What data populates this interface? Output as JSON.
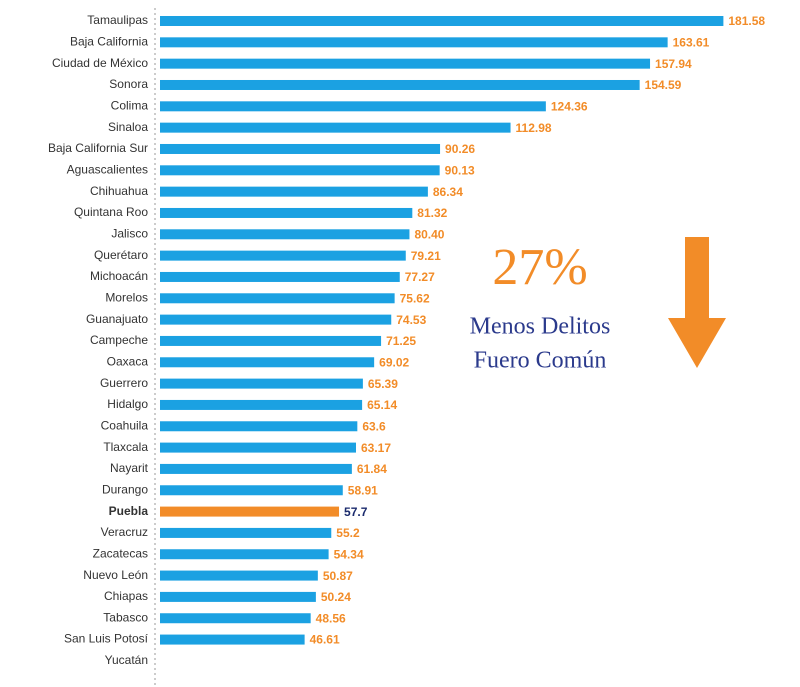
{
  "chart_data": {
    "type": "barh",
    "categories": [
      "Tamaulipas",
      "Baja California",
      "Ciudad de México",
      "Sonora",
      "Colima",
      "Sinaloa",
      "Baja California Sur",
      "Aguascalientes",
      "Chihuahua",
      "Quintana Roo",
      "Jalisco",
      "Querétaro",
      "Michoacán",
      "Morelos",
      "Guanajuato",
      "Campeche",
      "Oaxaca",
      "Guerrero",
      "Hidalgo",
      "Coahuila",
      "Tlaxcala",
      "Nayarit",
      "Durango",
      "Puebla",
      "Veracruz",
      "Zacatecas",
      "Nuevo León",
      "Chiapas",
      "Tabasco",
      "San Luis Potosí",
      "Yucatán"
    ],
    "values": [
      181.58,
      163.61,
      157.94,
      154.59,
      124.36,
      112.98,
      90.26,
      90.13,
      86.34,
      81.32,
      80.4,
      79.21,
      77.27,
      75.62,
      74.53,
      71.25,
      69.02,
      65.39,
      65.14,
      63.6,
      63.17,
      61.84,
      58.91,
      57.7,
      55.2,
      54.34,
      50.87,
      50.24,
      48.56,
      46.61,
      null
    ],
    "value_labels": [
      "181.58",
      "163.61",
      "157.94",
      "154.59",
      "124.36",
      "112.98",
      "90.26",
      "90.13",
      "86.34",
      "81.32",
      "80.40",
      "79.21",
      "77.27",
      "75.62",
      "74.53",
      "71.25",
      "69.02",
      "65.39",
      "65.14",
      "63.6",
      "63.17",
      "61.84",
      "58.91",
      "57.7",
      "55.2",
      "54.34",
      "50.87",
      "50.24",
      "48.56",
      "46.61",
      null
    ],
    "color": "#1ba1e2",
    "highlight": {
      "index": 23,
      "color": "#f28c28",
      "label_color": "#1a2a6c"
    },
    "label_color": "#f28c28",
    "xlim": [
      0,
      185
    ],
    "annotation": {
      "big": "27%",
      "lines": [
        "Menos Delitos",
        "Fuero Común"
      ],
      "color": "#f28c28",
      "text_color": "#2b3a8c"
    }
  }
}
